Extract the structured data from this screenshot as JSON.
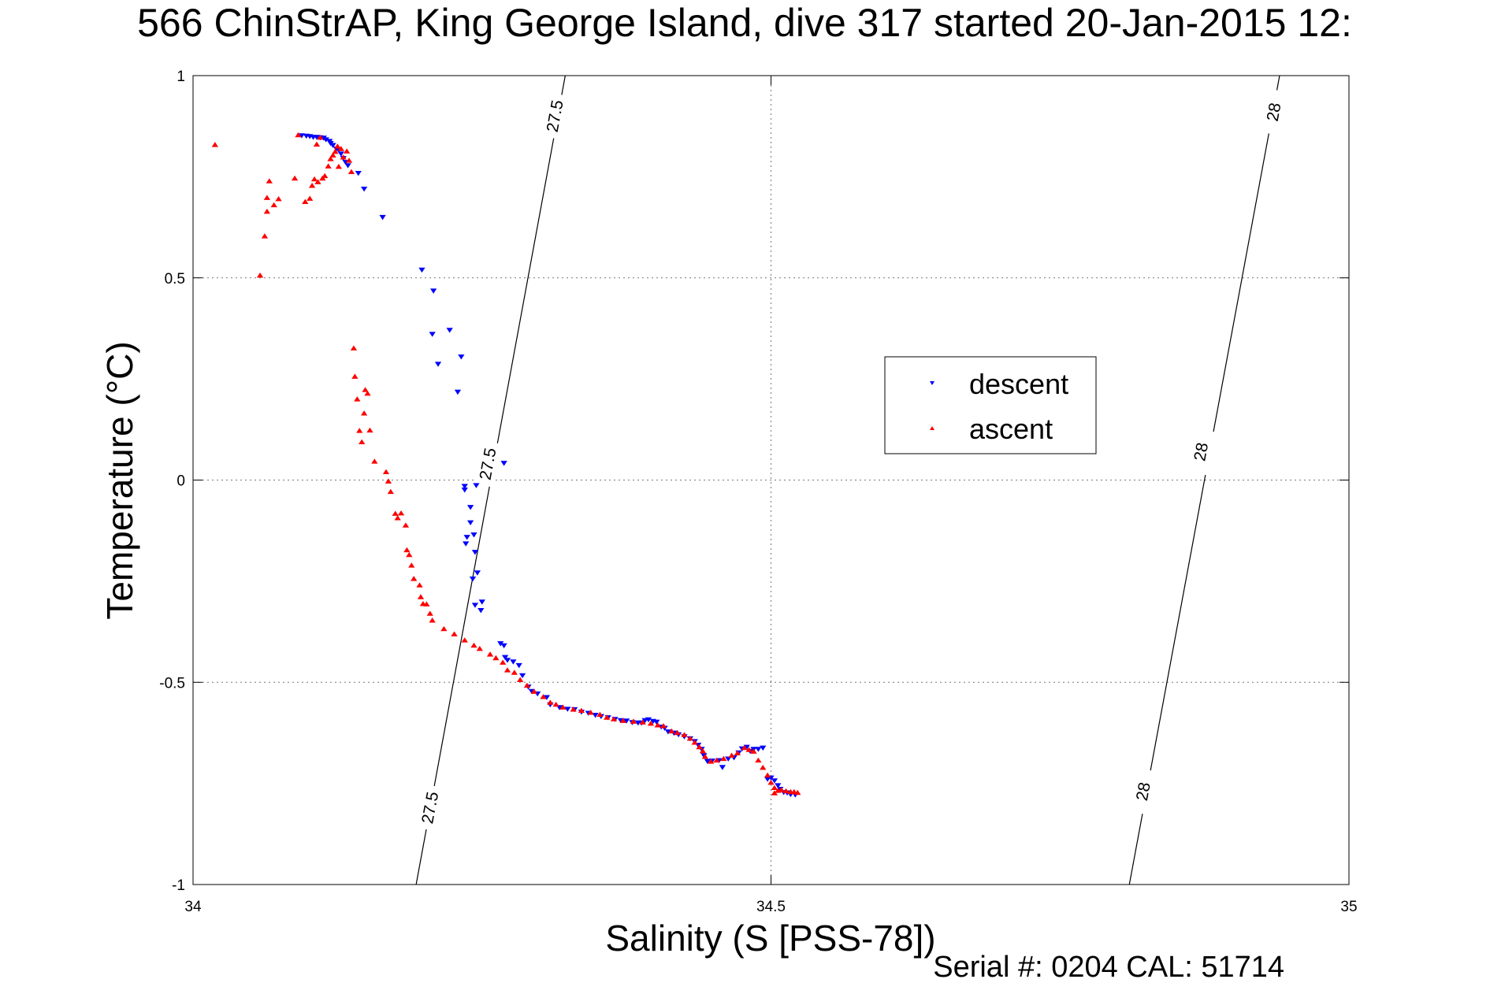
{
  "chart_data": {
    "type": "scatter",
    "title": "566 ChinStrAP, King George Island, dive 317 started 20-Jan-2015 12:",
    "xlabel": "Salinity (S [PSS-78])",
    "ylabel": "Temperature (°C)",
    "xlim": [
      34,
      35
    ],
    "ylim": [
      -1,
      1
    ],
    "xticks": [
      {
        "value": 34,
        "label": "34"
      },
      {
        "value": 34.5,
        "label": "34.5"
      },
      {
        "value": 35,
        "label": "35"
      }
    ],
    "yticks": [
      {
        "value": 1,
        "label": "1"
      },
      {
        "value": 0.5,
        "label": "0.5"
      },
      {
        "value": 0,
        "label": "0"
      },
      {
        "value": -0.5,
        "label": "-0.5"
      },
      {
        "value": -1,
        "label": "-1"
      }
    ],
    "grid": true,
    "grid_style": "dotted",
    "legend_position": "middle-right",
    "footer": "Serial #: 0204  CAL: 51714",
    "contours": [
      {
        "label": "27.5",
        "points": [
          [
            34.193,
            -1.0
          ],
          [
            34.322,
            1.0
          ]
        ],
        "label_positions": [
          [
            34.205,
            -0.81
          ],
          [
            34.255,
            0.04
          ],
          [
            34.313,
            0.9
          ]
        ]
      },
      {
        "label": "28",
        "points": [
          [
            34.81,
            -1.0
          ],
          [
            34.94,
            1.0
          ]
        ],
        "label_positions": [
          [
            34.822,
            -0.77
          ],
          [
            34.872,
            0.07
          ],
          [
            34.935,
            0.91
          ]
        ]
      }
    ],
    "series": [
      {
        "name": "descent",
        "marker": "triangle-down",
        "color": "#0000ff",
        "points": [
          [
            34.094,
            0.853
          ],
          [
            34.098,
            0.852
          ],
          [
            34.101,
            0.851
          ],
          [
            34.104,
            0.849
          ],
          [
            34.107,
            0.849
          ],
          [
            34.11,
            0.848
          ],
          [
            34.113,
            0.847
          ],
          [
            34.115,
            0.843
          ],
          [
            34.118,
            0.839
          ],
          [
            34.119,
            0.834
          ],
          [
            34.121,
            0.829
          ],
          [
            34.124,
            0.82
          ],
          [
            34.126,
            0.817
          ],
          [
            34.128,
            0.808
          ],
          [
            34.13,
            0.797
          ],
          [
            34.132,
            0.787
          ],
          [
            34.134,
            0.779
          ],
          [
            34.143,
            0.76
          ],
          [
            34.148,
            0.721
          ],
          [
            34.164,
            0.651
          ],
          [
            34.198,
            0.521
          ],
          [
            34.208,
            0.469
          ],
          [
            34.207,
            0.362
          ],
          [
            34.212,
            0.288
          ],
          [
            34.222,
            0.372
          ],
          [
            34.232,
            0.306
          ],
          [
            34.229,
            0.219
          ],
          [
            34.269,
            0.043
          ],
          [
            34.245,
            -0.012
          ],
          [
            34.235,
            -0.014
          ],
          [
            34.235,
            -0.023
          ],
          [
            34.24,
            -0.066
          ],
          [
            34.24,
            -0.104
          ],
          [
            34.237,
            -0.14
          ],
          [
            34.236,
            -0.156
          ],
          [
            34.243,
            -0.134
          ],
          [
            34.244,
            -0.177
          ],
          [
            34.246,
            -0.228
          ],
          [
            34.242,
            -0.243
          ],
          [
            34.25,
            -0.3
          ],
          [
            34.244,
            -0.308
          ],
          [
            34.249,
            -0.321
          ],
          [
            34.266,
            -0.403
          ],
          [
            34.269,
            -0.408
          ],
          [
            34.27,
            -0.437
          ],
          [
            34.272,
            -0.444
          ],
          [
            34.277,
            -0.448
          ],
          [
            34.282,
            -0.457
          ],
          [
            34.285,
            -0.482
          ],
          [
            34.29,
            -0.51
          ],
          [
            34.293,
            -0.521
          ],
          [
            34.298,
            -0.527
          ],
          [
            34.306,
            -0.536
          ],
          [
            34.309,
            -0.554
          ],
          [
            34.317,
            -0.561
          ],
          [
            34.324,
            -0.565
          ],
          [
            34.33,
            -0.566
          ],
          [
            34.336,
            -0.572
          ],
          [
            34.342,
            -0.575
          ],
          [
            34.348,
            -0.58
          ],
          [
            34.353,
            -0.583
          ],
          [
            34.359,
            -0.586
          ],
          [
            34.365,
            -0.59
          ],
          [
            34.37,
            -0.593
          ],
          [
            34.375,
            -0.594
          ],
          [
            34.38,
            -0.598
          ],
          [
            34.385,
            -0.599
          ],
          [
            34.388,
            -0.599
          ],
          [
            34.391,
            -0.593
          ],
          [
            34.394,
            -0.591
          ],
          [
            34.398,
            -0.595
          ],
          [
            34.401,
            -0.597
          ],
          [
            34.405,
            -0.609
          ],
          [
            34.408,
            -0.612
          ],
          [
            34.411,
            -0.621
          ],
          [
            34.416,
            -0.624
          ],
          [
            34.42,
            -0.628
          ],
          [
            34.425,
            -0.633
          ],
          [
            34.43,
            -0.638
          ],
          [
            34.434,
            -0.645
          ],
          [
            34.437,
            -0.654
          ],
          [
            34.44,
            -0.664
          ],
          [
            34.442,
            -0.68
          ],
          [
            34.445,
            -0.694
          ],
          [
            34.449,
            -0.693
          ],
          [
            34.455,
            -0.692
          ],
          [
            34.458,
            -0.709
          ],
          [
            34.463,
            -0.688
          ],
          [
            34.468,
            -0.685
          ],
          [
            34.472,
            -0.673
          ],
          [
            34.475,
            -0.663
          ],
          [
            34.479,
            -0.659
          ],
          [
            34.482,
            -0.669
          ],
          [
            34.485,
            -0.664
          ],
          [
            34.489,
            -0.664
          ],
          [
            34.493,
            -0.661
          ],
          [
            34.497,
            -0.738
          ],
          [
            34.5,
            -0.735
          ],
          [
            34.503,
            -0.742
          ],
          [
            34.506,
            -0.754
          ],
          [
            34.508,
            -0.763
          ],
          [
            34.511,
            -0.771
          ],
          [
            34.514,
            -0.772
          ],
          [
            34.517,
            -0.776
          ],
          [
            34.521,
            -0.777
          ]
        ]
      },
      {
        "name": "ascent",
        "marker": "triangle-up",
        "color": "#ff0000",
        "points": [
          [
            34.019,
            0.828
          ],
          [
            34.058,
            0.505
          ],
          [
            34.062,
            0.602
          ],
          [
            34.064,
            0.663
          ],
          [
            34.064,
            0.697
          ],
          [
            34.066,
            0.738
          ],
          [
            34.07,
            0.679
          ],
          [
            34.074,
            0.694
          ],
          [
            34.088,
            0.745
          ],
          [
            34.091,
            0.852
          ],
          [
            34.097,
            0.687
          ],
          [
            34.101,
            0.695
          ],
          [
            34.103,
            0.727
          ],
          [
            34.105,
            0.743
          ],
          [
            34.107,
            0.829
          ],
          [
            34.108,
            0.736
          ],
          [
            34.11,
            0.846
          ],
          [
            34.112,
            0.745
          ],
          [
            34.114,
            0.751
          ],
          [
            34.117,
            0.775
          ],
          [
            34.119,
            0.793
          ],
          [
            34.121,
            0.802
          ],
          [
            34.123,
            0.811
          ],
          [
            34.125,
            0.824
          ],
          [
            34.126,
            0.774
          ],
          [
            34.128,
            0.818
          ],
          [
            34.13,
            0.797
          ],
          [
            34.133,
            0.812
          ],
          [
            34.135,
            0.789
          ],
          [
            34.137,
            0.761
          ],
          [
            34.139,
            0.325
          ],
          [
            34.14,
            0.255
          ],
          [
            34.142,
            0.199
          ],
          [
            34.144,
            0.121
          ],
          [
            34.146,
            0.093
          ],
          [
            34.148,
            0.164
          ],
          [
            34.149,
            0.222
          ],
          [
            34.151,
            0.213
          ],
          [
            34.153,
            0.122
          ],
          [
            34.157,
            0.045
          ],
          [
            34.167,
            0.019
          ],
          [
            34.169,
            -0.004
          ],
          [
            34.171,
            -0.03
          ],
          [
            34.175,
            -0.084
          ],
          [
            34.177,
            -0.095
          ],
          [
            34.18,
            -0.083
          ],
          [
            34.184,
            -0.113
          ],
          [
            34.185,
            -0.174
          ],
          [
            34.187,
            -0.186
          ],
          [
            34.189,
            -0.212
          ],
          [
            34.191,
            -0.245
          ],
          [
            34.196,
            -0.261
          ],
          [
            34.197,
            -0.29
          ],
          [
            34.199,
            -0.307
          ],
          [
            34.202,
            -0.308
          ],
          [
            34.205,
            -0.331
          ],
          [
            34.207,
            -0.348
          ],
          [
            34.217,
            -0.369
          ],
          [
            34.226,
            -0.382
          ],
          [
            34.235,
            -0.397
          ],
          [
            34.243,
            -0.41
          ],
          [
            34.248,
            -0.418
          ],
          [
            34.257,
            -0.432
          ],
          [
            34.262,
            -0.441
          ],
          [
            34.268,
            -0.452
          ],
          [
            34.272,
            -0.471
          ],
          [
            34.278,
            -0.477
          ],
          [
            34.283,
            -0.495
          ],
          [
            34.289,
            -0.509
          ],
          [
            34.295,
            -0.524
          ],
          [
            34.303,
            -0.537
          ],
          [
            34.309,
            -0.551
          ],
          [
            34.314,
            -0.556
          ],
          [
            34.32,
            -0.563
          ],
          [
            34.329,
            -0.568
          ],
          [
            34.336,
            -0.571
          ],
          [
            34.344,
            -0.576
          ],
          [
            34.352,
            -0.581
          ],
          [
            34.358,
            -0.588
          ],
          [
            34.364,
            -0.592
          ],
          [
            34.372,
            -0.596
          ],
          [
            34.381,
            -0.598
          ],
          [
            34.389,
            -0.6
          ],
          [
            34.396,
            -0.603
          ],
          [
            34.402,
            -0.607
          ],
          [
            34.407,
            -0.609
          ],
          [
            34.414,
            -0.622
          ],
          [
            34.419,
            -0.626
          ],
          [
            34.425,
            -0.631
          ],
          [
            34.43,
            -0.64
          ],
          [
            34.434,
            -0.65
          ],
          [
            34.438,
            -0.661
          ],
          [
            34.441,
            -0.671
          ],
          [
            34.443,
            -0.685
          ],
          [
            34.448,
            -0.697
          ],
          [
            34.453,
            -0.694
          ],
          [
            34.459,
            -0.69
          ],
          [
            34.466,
            -0.682
          ],
          [
            34.471,
            -0.676
          ],
          [
            34.477,
            -0.663
          ],
          [
            34.481,
            -0.668
          ],
          [
            34.485,
            -0.672
          ],
          [
            34.489,
            -0.694
          ],
          [
            34.493,
            -0.712
          ],
          [
            34.497,
            -0.731
          ],
          [
            34.5,
            -0.749
          ],
          [
            34.503,
            -0.762
          ],
          [
            34.506,
            -0.769
          ],
          [
            34.509,
            -0.767
          ],
          [
            34.513,
            -0.77
          ],
          [
            34.517,
            -0.772
          ],
          [
            34.52,
            -0.772
          ],
          [
            34.523,
            -0.774
          ],
          [
            34.503,
            -0.775
          ]
        ]
      }
    ]
  }
}
